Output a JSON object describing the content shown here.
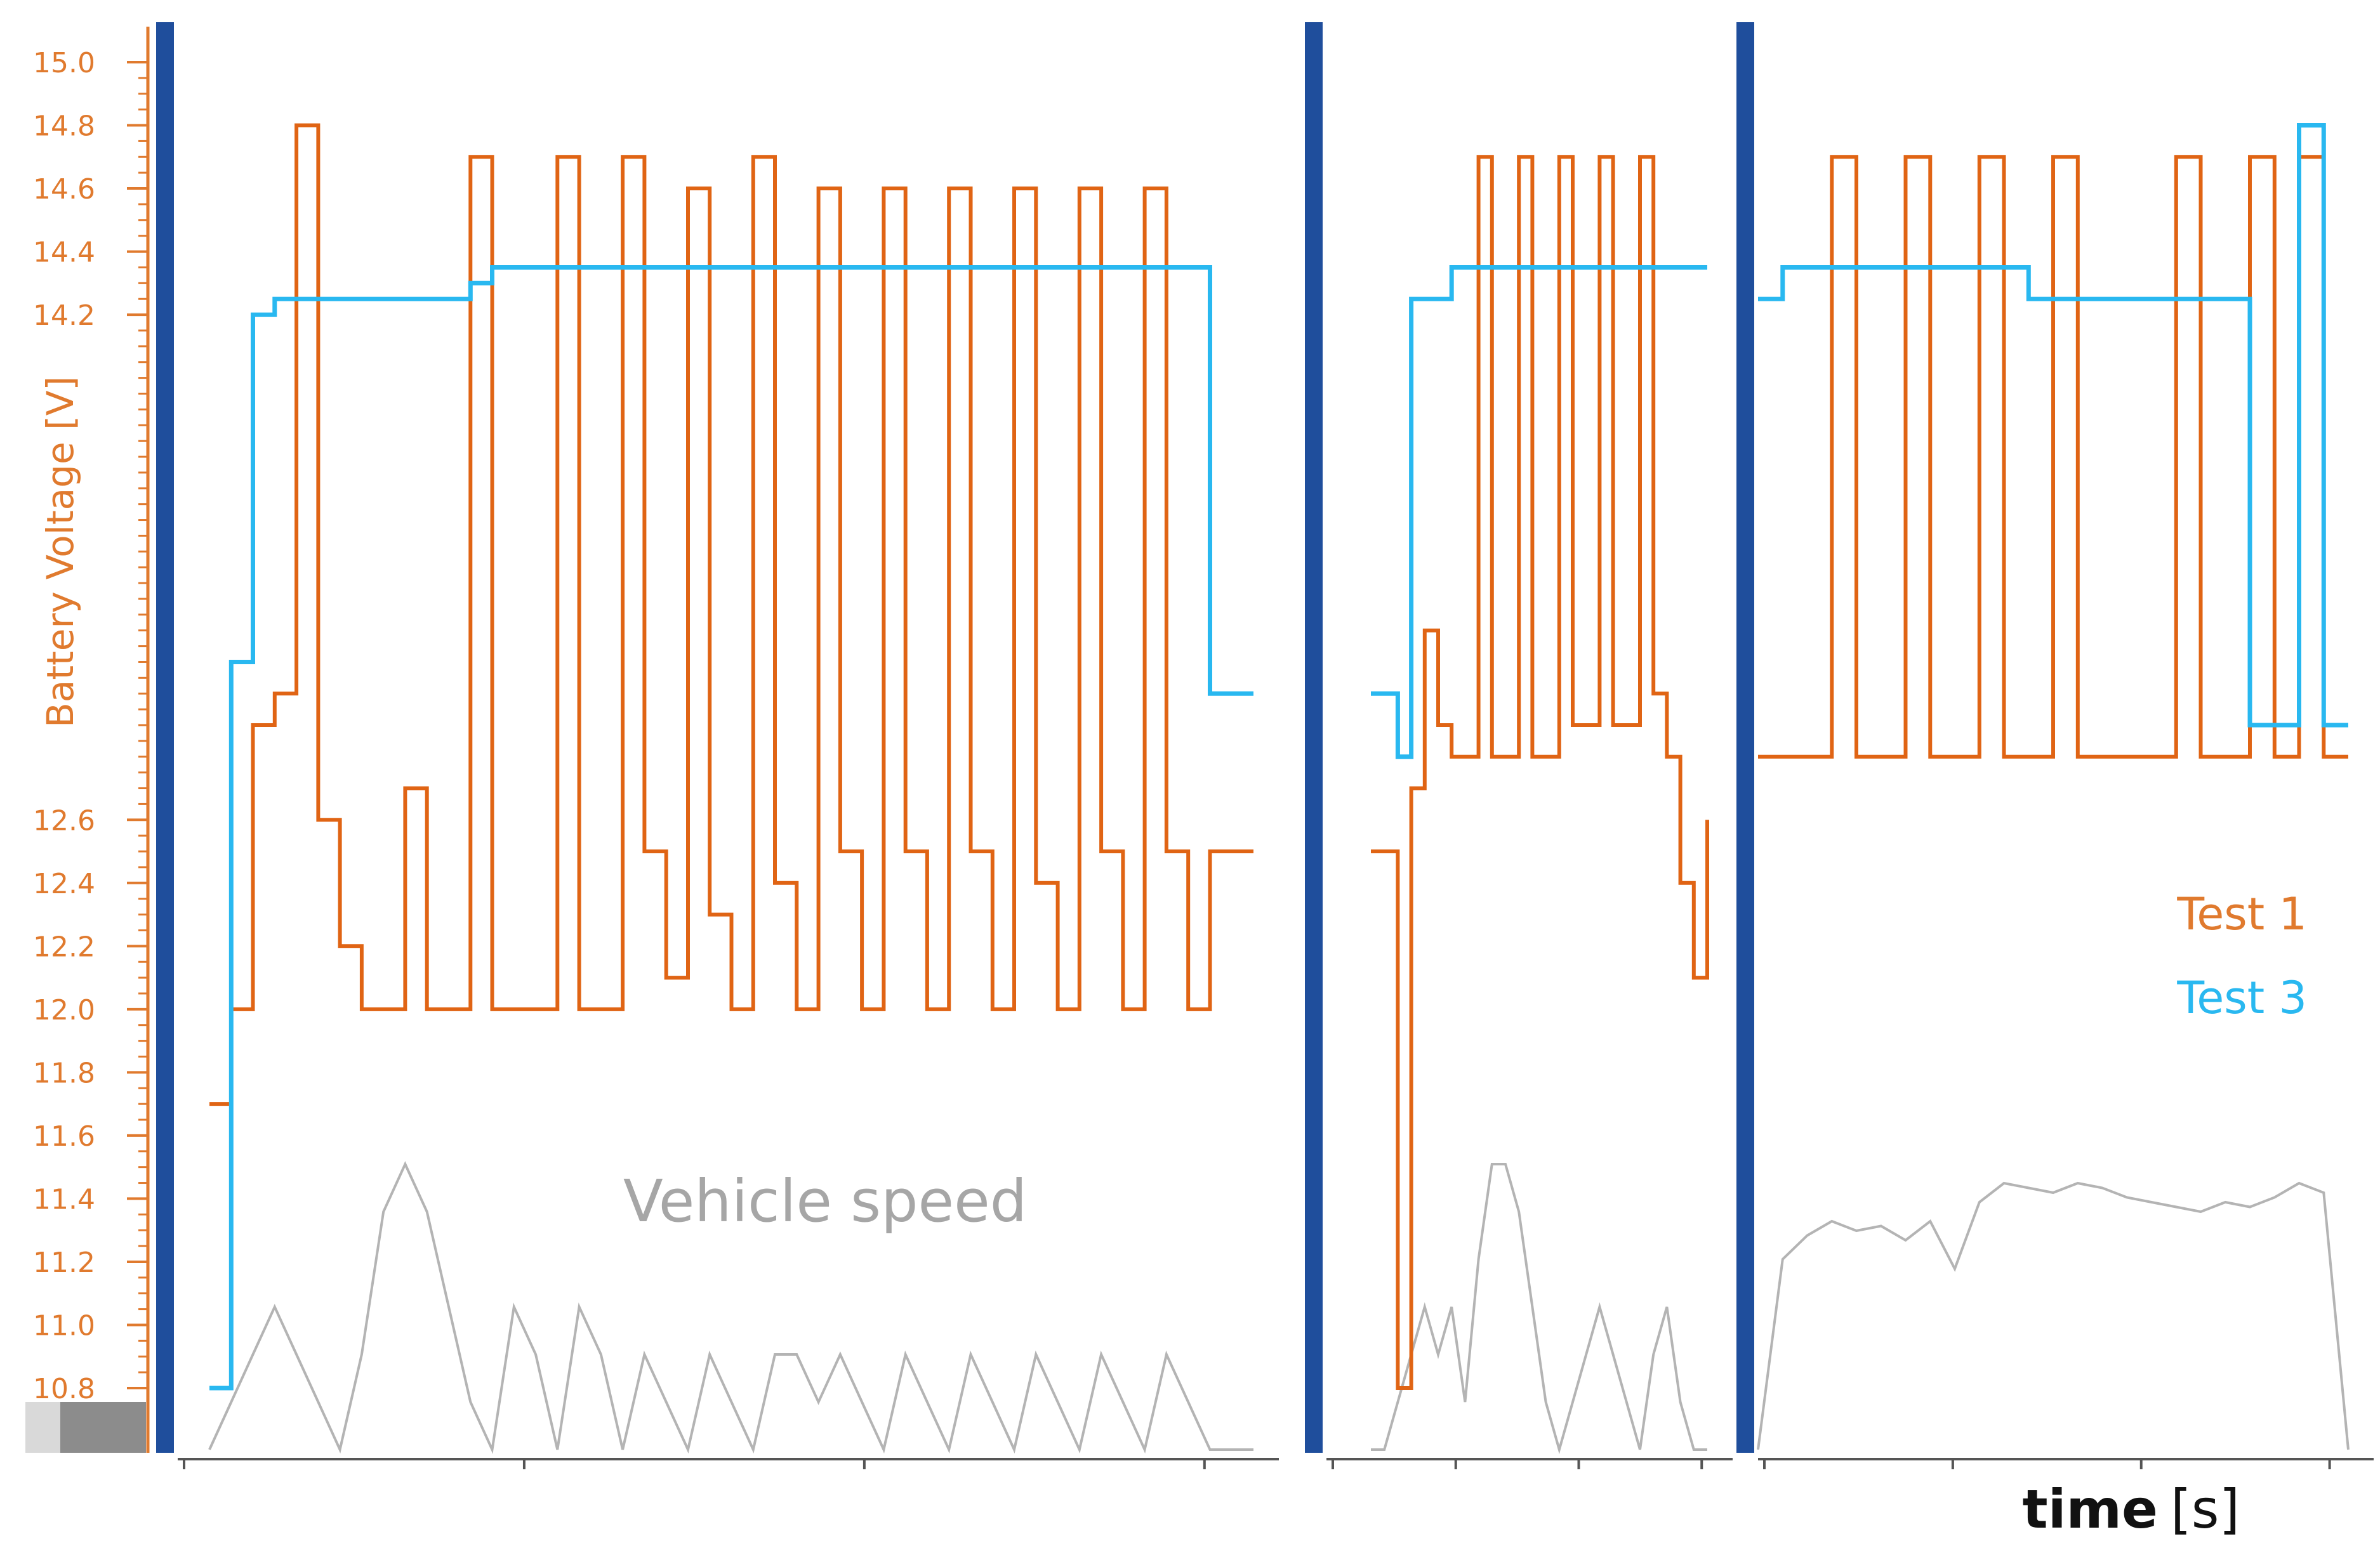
{
  "chart_data": {
    "type": "line",
    "ylabel": "Battery Voltage [V]",
    "xlabel": "time",
    "xlabel_unit": "[s]",
    "ylim": [
      10.8,
      15.0
    ],
    "yticks": [
      "15.0",
      "14.8",
      "14.6",
      "14.4",
      "14.2",
      "12.6",
      "12.4",
      "12.2",
      "12.0",
      "11.8",
      "11.6",
      "11.4",
      "11.2",
      "11.0",
      "10.8"
    ],
    "annotation": "Vehicle speed",
    "legend": [
      "Test 1",
      "Test 3"
    ],
    "legend_position": "right",
    "grid": false,
    "colors": {
      "test1": "#e06414",
      "test3": "#29b8f0",
      "speed": "#b4b4b4",
      "divider": "#1f4e9c",
      "axis": "#e07a2e"
    },
    "panels": [
      {
        "series": [
          {
            "name": "Test 1",
            "values": [
              11.7,
              12.0,
              12.9,
              13.0,
              14.8,
              12.6,
              12.2,
              12.0,
              12.0,
              12.7,
              12.0,
              12.0,
              14.7,
              12.0,
              12.0,
              12.0,
              14.7,
              12.0,
              12.0,
              14.7,
              12.5,
              12.1,
              14.6,
              12.3,
              12.0,
              14.7,
              12.4,
              12.0,
              14.6,
              12.5,
              12.0,
              14.6,
              12.5,
              12.0,
              14.6,
              12.5,
              12.0,
              14.6,
              12.4,
              12.0,
              14.6,
              12.5,
              12.0,
              14.6,
              12.5,
              12.0,
              12.5,
              12.5,
              12.5
            ]
          },
          {
            "name": "Test 3",
            "values": [
              10.8,
              13.1,
              14.2,
              14.25,
              14.25,
              14.25,
              14.25,
              14.25,
              14.25,
              14.25,
              14.25,
              14.25,
              14.3,
              14.35,
              14.35,
              14.35,
              14.35,
              14.35,
              14.35,
              14.35,
              14.35,
              14.35,
              14.35,
              14.35,
              14.35,
              14.35,
              14.35,
              14.35,
              14.35,
              14.35,
              14.35,
              14.35,
              14.35,
              14.35,
              14.35,
              14.35,
              14.35,
              14.35,
              14.35,
              14.35,
              14.35,
              14.35,
              14.35,
              14.35,
              14.35,
              14.35,
              13.0,
              13.0,
              13.0
            ]
          }
        ],
        "speed": [
          0,
          1,
          2,
          3,
          2,
          1,
          0,
          2,
          5,
          6,
          5,
          3,
          1,
          0,
          3,
          2,
          0,
          3,
          2,
          0,
          2,
          1,
          0,
          2,
          1,
          0,
          2,
          2,
          1,
          2,
          1,
          0,
          2,
          1,
          0,
          2,
          1,
          0,
          2,
          1,
          0,
          2,
          1,
          0,
          2,
          1,
          0,
          0,
          0
        ]
      },
      {
        "series": [
          {
            "name": "Test 1",
            "values": [
              12.5,
              12.5,
              10.8,
              12.7,
              13.2,
              12.9,
              12.8,
              12.8,
              14.7,
              12.8,
              12.8,
              14.7,
              12.8,
              12.8,
              14.7,
              12.9,
              12.9,
              14.7,
              12.9,
              12.9,
              14.7,
              13.0,
              12.8,
              12.4,
              12.1,
              12.6
            ]
          },
          {
            "name": "Test 3",
            "values": [
              13.0,
              13.0,
              12.8,
              14.25,
              14.25,
              14.25,
              14.35,
              14.35,
              14.35,
              14.35,
              14.35,
              14.35,
              14.35,
              14.35,
              14.35,
              14.35,
              14.35,
              14.35,
              14.35,
              14.35,
              14.35,
              14.35,
              14.35,
              14.35,
              14.35,
              14.35
            ]
          }
        ],
        "speed": [
          0,
          0,
          1,
          2,
          3,
          2,
          3,
          1,
          4,
          6,
          6,
          5,
          3,
          1,
          0,
          1,
          2,
          3,
          2,
          1,
          0,
          2,
          3,
          1,
          0,
          0
        ]
      },
      {
        "series": [
          {
            "name": "Test 1",
            "values": [
              12.8,
              12.8,
              12.8,
              14.7,
              12.8,
              12.8,
              14.7,
              12.8,
              12.8,
              14.7,
              12.8,
              12.8,
              14.7,
              12.8,
              12.8,
              12.8,
              12.8,
              14.7,
              12.8,
              12.8,
              14.7,
              12.8,
              14.7,
              12.8,
              12.8
            ]
          },
          {
            "name": "Test 3",
            "values": [
              14.25,
              14.35,
              14.35,
              14.35,
              14.35,
              14.35,
              14.35,
              14.35,
              14.35,
              14.35,
              14.35,
              14.25,
              14.25,
              14.25,
              14.25,
              14.25,
              14.25,
              14.25,
              14.25,
              14.25,
              12.9,
              12.9,
              14.8,
              12.9,
              12.9
            ]
          }
        ],
        "speed": [
          0,
          4,
          4.5,
          4.8,
          4.6,
          4.7,
          4.4,
          4.8,
          3.8,
          5.2,
          5.6,
          5.5,
          5.4,
          5.6,
          5.5,
          5.3,
          5.2,
          5.1,
          5.0,
          5.2,
          5.1,
          5.3,
          5.6,
          5.4,
          0
        ]
      }
    ]
  }
}
